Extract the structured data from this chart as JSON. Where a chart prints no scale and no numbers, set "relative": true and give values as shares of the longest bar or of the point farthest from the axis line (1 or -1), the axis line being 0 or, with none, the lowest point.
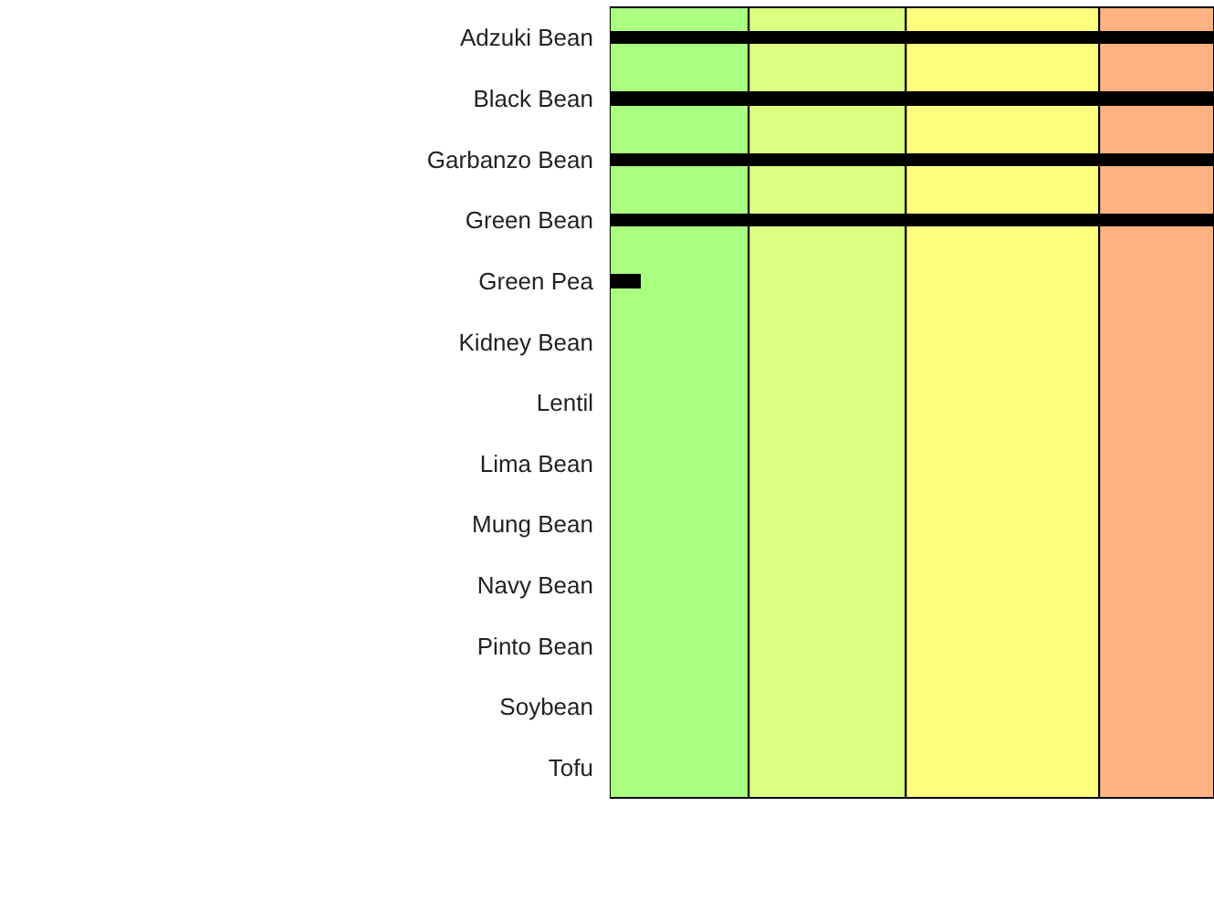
{
  "chart_data": {
    "type": "bar",
    "orientation": "horizontal",
    "relative": true,
    "categories": [
      "Adzuki Bean",
      "Black Bean",
      "Garbanzo Bean",
      "Green Bean",
      "Green Pea",
      "Kidney Bean",
      "Lentil",
      "Lima Bean",
      "Mung Bean",
      "Navy Bean",
      "Pinto Bean",
      "Soybean",
      "Tofu"
    ],
    "values": [
      1,
      1,
      1,
      1,
      0.05,
      0,
      0,
      0,
      0,
      0,
      0,
      0,
      0
    ],
    "color": "#000000",
    "bands": [
      {
        "axis": "x",
        "from": 0,
        "to": 0.23,
        "color": "#aaff80"
      },
      {
        "axis": "x",
        "from": 0.23,
        "to": 0.49,
        "color": "#ddff80"
      },
      {
        "axis": "x",
        "from": 0.49,
        "to": 0.81,
        "color": "#ffff80"
      },
      {
        "axis": "x",
        "from": 0.81,
        "to": 1,
        "color": "#ffb380"
      }
    ]
  }
}
